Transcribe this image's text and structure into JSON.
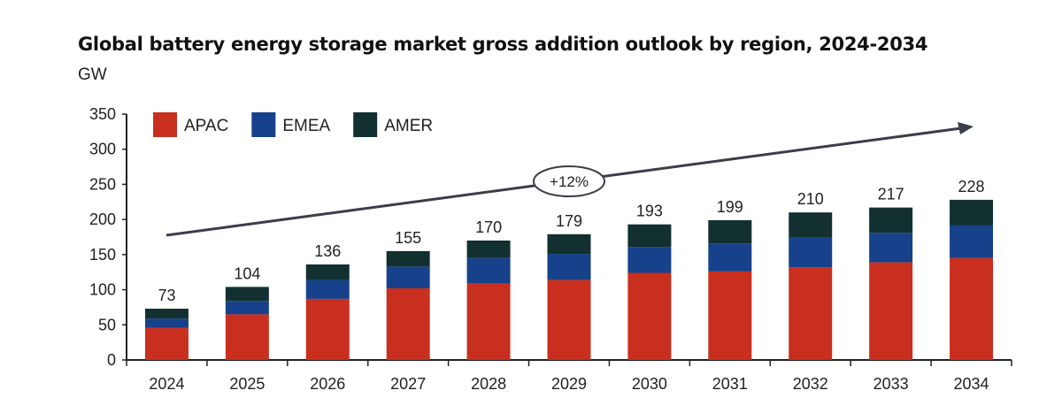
{
  "chart_data": {
    "type": "bar",
    "stacked": true,
    "title": "Global battery energy storage market gross addition outlook by region, 2024-2034",
    "ylabel": "GW",
    "xlabel": "",
    "ylim": [
      0,
      350
    ],
    "yticks": [
      0,
      50,
      100,
      150,
      200,
      250,
      300,
      350
    ],
    "grid": false,
    "legend_position": "top-left",
    "categories": [
      "2024",
      "2025",
      "2026",
      "2027",
      "2028",
      "2029",
      "2030",
      "2031",
      "2032",
      "2033",
      "2034"
    ],
    "series": [
      {
        "name": "APAC",
        "color": "#c92f1f",
        "values": [
          46,
          65,
          87,
          102,
          109,
          114,
          124,
          126,
          132,
          139,
          145
        ]
      },
      {
        "name": "EMEA",
        "color": "#17418a",
        "values": [
          13,
          19,
          27,
          31,
          36,
          37,
          37,
          40,
          43,
          42,
          47
        ]
      },
      {
        "name": "AMER",
        "color": "#123030",
        "values": [
          14,
          20,
          22,
          22,
          25,
          28,
          32,
          33,
          35,
          36,
          36
        ]
      }
    ],
    "totals": [
      "73",
      "104",
      "136",
      "155",
      "170",
      "179",
      "193",
      "199",
      "210",
      "217",
      "228"
    ],
    "annotation": {
      "text": "+12%",
      "type": "trend-arrow"
    }
  }
}
